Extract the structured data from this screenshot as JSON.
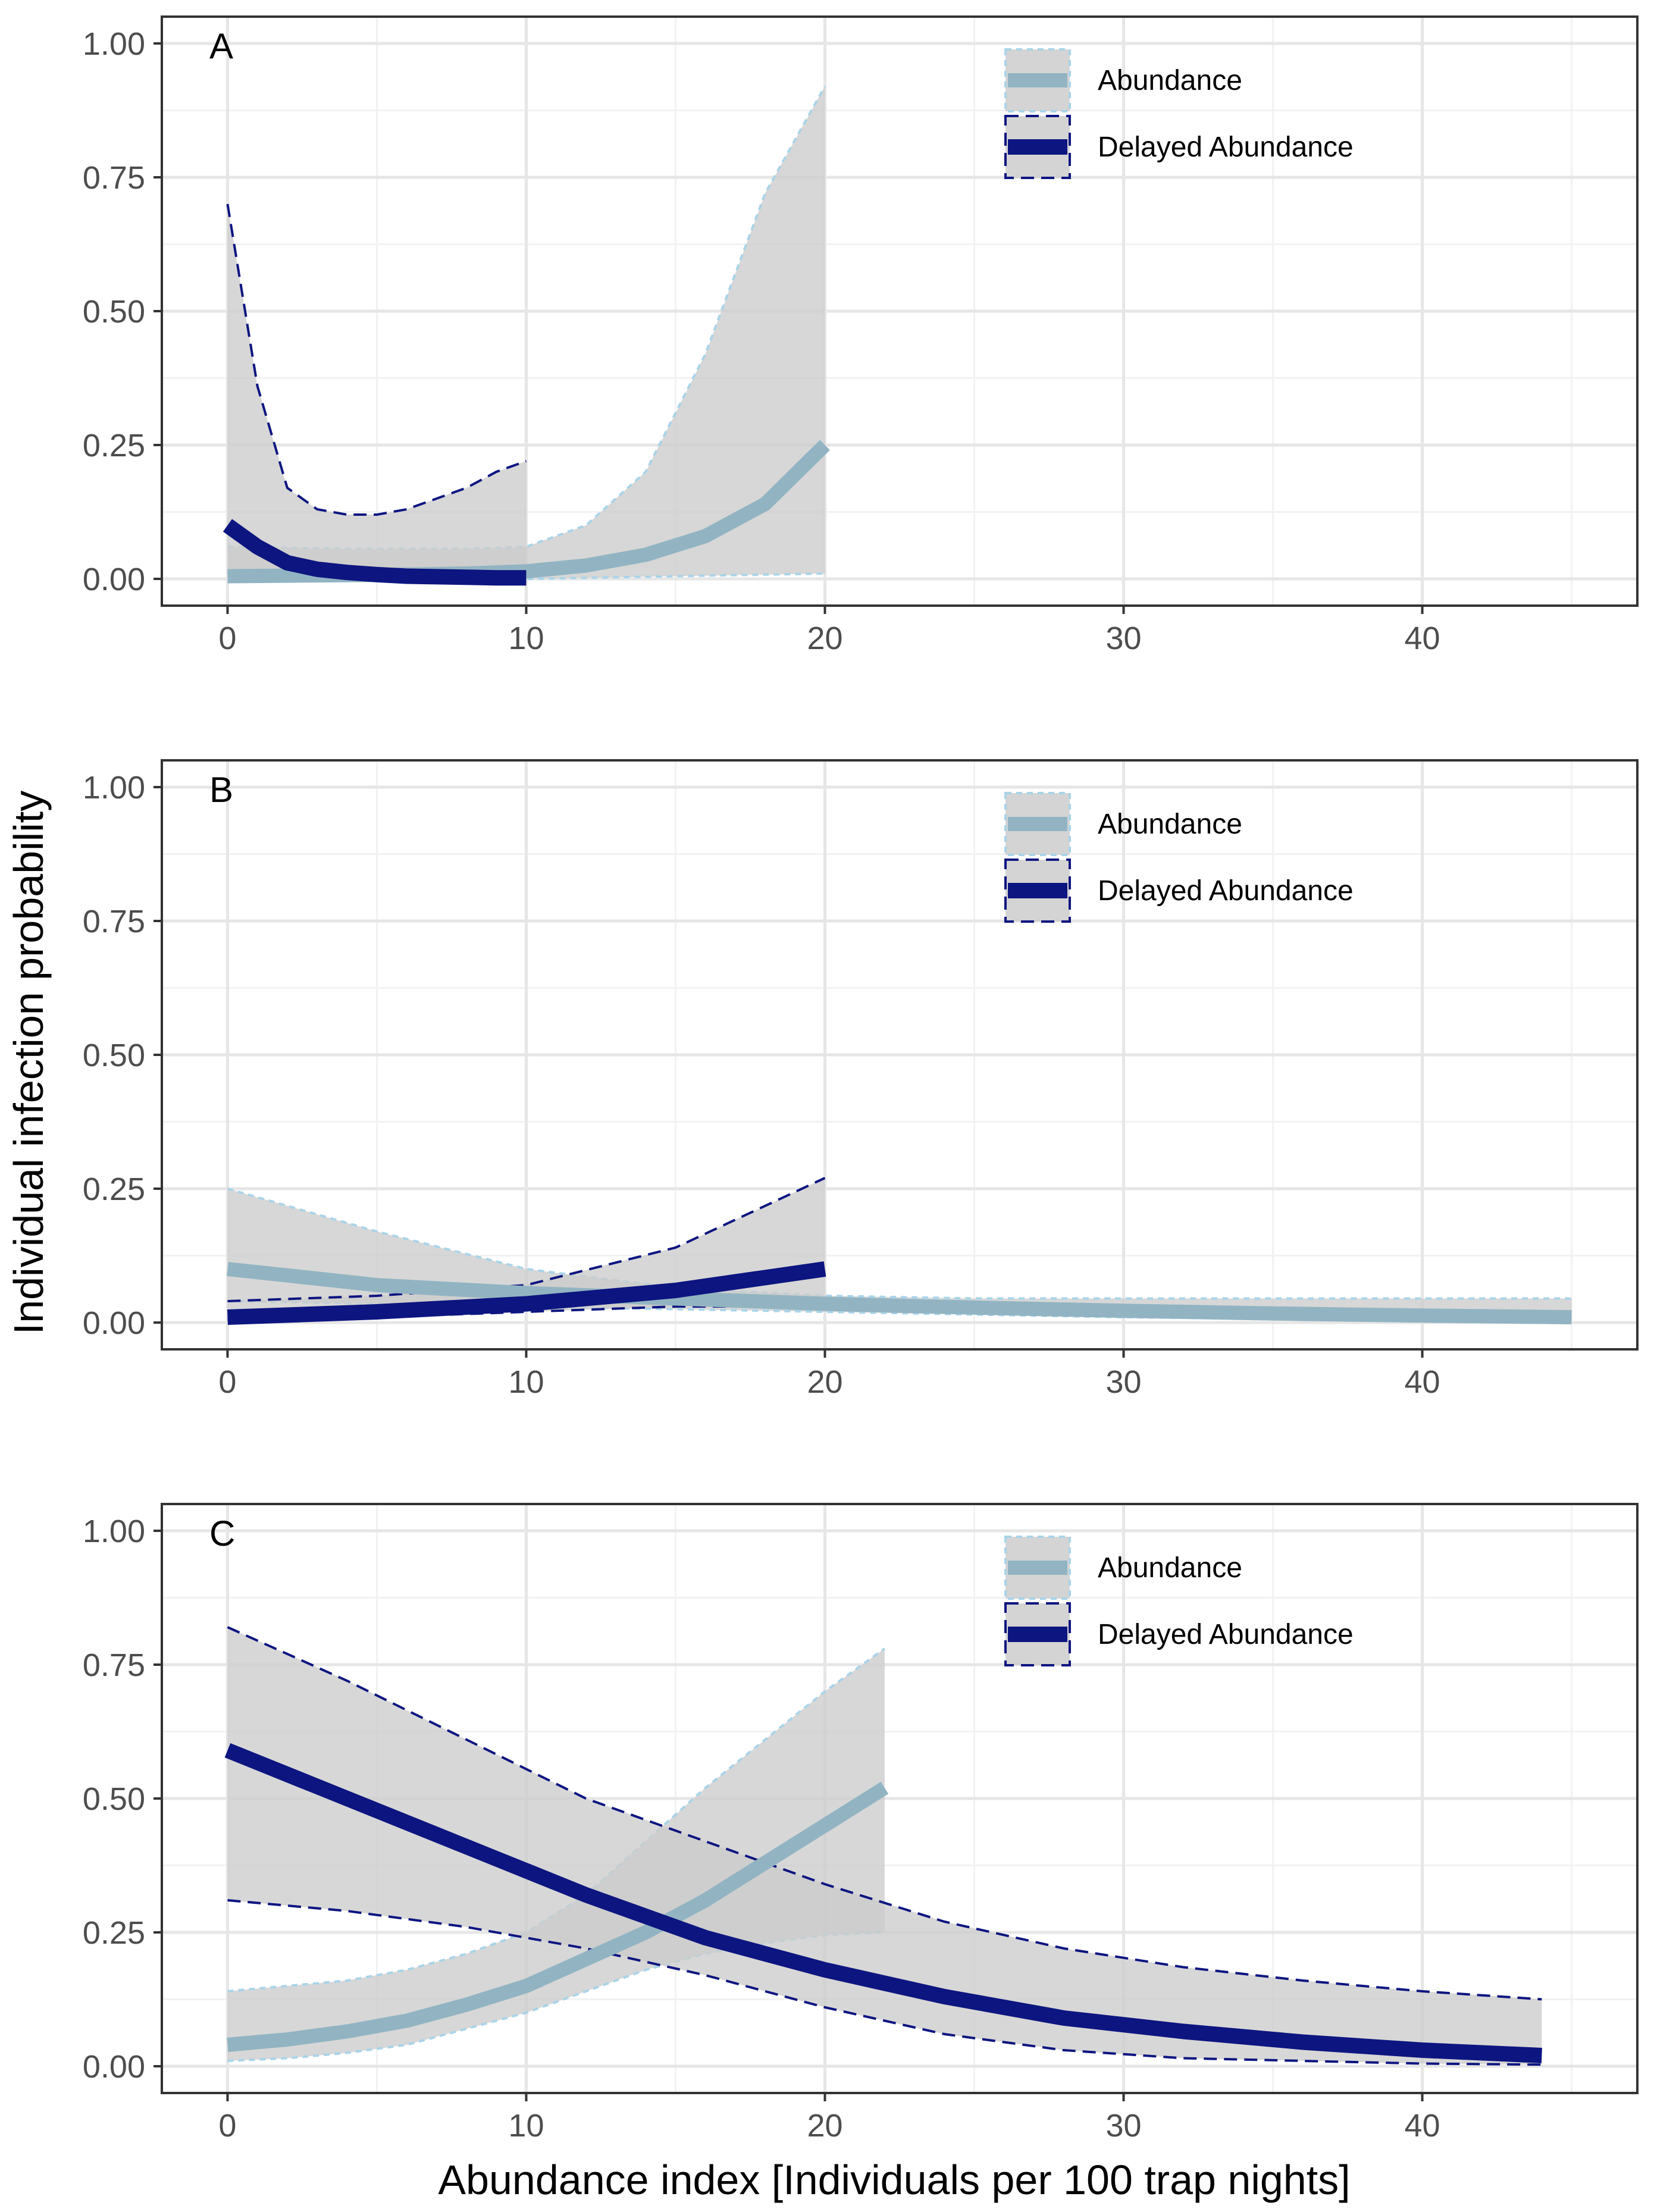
{
  "figure": {
    "ylabel": "Individual infection probability",
    "xlabel": "Abundance index [Individuals per 100 trap nights]"
  },
  "colors": {
    "abundance": "#92b4c2",
    "abundance_edge": "#a9d4e8",
    "delayed": "#0d1580",
    "ribbon": "#cccccc",
    "grid_major": "#e6e6e6",
    "grid_minor": "#f2f2f2",
    "border": "#333333"
  },
  "legend": {
    "abundance": "Abundance",
    "delayed": "Delayed Abundance"
  },
  "chart_data": [
    {
      "type": "line",
      "panel": "A",
      "xlim": [
        -2.2,
        47.2
      ],
      "ylim": [
        -0.05,
        1.05
      ],
      "xticks": [
        0,
        10,
        20,
        30,
        40
      ],
      "yticks": [
        0,
        0.25,
        0.5,
        0.75,
        1
      ],
      "ytick_labels": [
        "0.00",
        "0.25",
        "0.50",
        "0.75",
        "1.00"
      ],
      "series": [
        {
          "name": "Abundance",
          "x": [
            0,
            2,
            4,
            6,
            8,
            10,
            12,
            14,
            16,
            18,
            20
          ],
          "y": [
            0.005,
            0.006,
            0.007,
            0.008,
            0.01,
            0.014,
            0.025,
            0.045,
            0.08,
            0.14,
            0.25
          ],
          "lower": [
            0.0,
            0.0,
            0.0,
            0.0,
            0.0,
            0.0,
            0.002,
            0.004,
            0.006,
            0.008,
            0.01
          ],
          "upper": [
            0.06,
            0.058,
            0.056,
            0.056,
            0.056,
            0.06,
            0.1,
            0.2,
            0.42,
            0.72,
            0.92
          ]
        },
        {
          "name": "Delayed Abundance",
          "x": [
            0,
            1,
            2,
            3,
            4,
            5,
            6,
            7,
            8,
            9,
            10
          ],
          "y": [
            0.1,
            0.06,
            0.03,
            0.018,
            0.012,
            0.008,
            0.005,
            0.004,
            0.003,
            0.002,
            0.002
          ],
          "lower": [
            0.01,
            0.008,
            0.006,
            0.004,
            0.003,
            0.002,
            0.001,
            0.001,
            0.0,
            0.0,
            0.0
          ],
          "upper": [
            0.7,
            0.36,
            0.17,
            0.13,
            0.12,
            0.12,
            0.13,
            0.15,
            0.17,
            0.2,
            0.22
          ]
        }
      ]
    },
    {
      "type": "line",
      "panel": "B",
      "xlim": [
        -2.2,
        47.2
      ],
      "ylim": [
        -0.05,
        1.05
      ],
      "xticks": [
        0,
        10,
        20,
        30,
        40
      ],
      "yticks": [
        0,
        0.25,
        0.5,
        0.75,
        1
      ],
      "ytick_labels": [
        "0.00",
        "0.25",
        "0.50",
        "0.75",
        "1.00"
      ],
      "series": [
        {
          "name": "Abundance",
          "x": [
            0,
            5,
            10,
            15,
            20,
            25,
            30,
            35,
            40,
            45
          ],
          "y": [
            0.1,
            0.07,
            0.055,
            0.045,
            0.035,
            0.028,
            0.022,
            0.017,
            0.013,
            0.01
          ],
          "lower": [
            0.04,
            0.035,
            0.03,
            0.025,
            0.02,
            0.015,
            0.01,
            0.007,
            0.004,
            0.0
          ],
          "upper": [
            0.25,
            0.17,
            0.1,
            0.065,
            0.05,
            0.045,
            0.045,
            0.045,
            0.045,
            0.045
          ]
        },
        {
          "name": "Delayed Abundance",
          "x": [
            0,
            5,
            10,
            15,
            20
          ],
          "y": [
            0.01,
            0.02,
            0.035,
            0.06,
            0.1
          ],
          "lower": [
            0.005,
            0.01,
            0.02,
            0.03,
            0.03
          ],
          "upper": [
            0.04,
            0.05,
            0.07,
            0.14,
            0.27
          ]
        }
      ]
    },
    {
      "type": "line",
      "panel": "C",
      "xlim": [
        -2.2,
        47.2
      ],
      "ylim": [
        -0.05,
        1.05
      ],
      "xticks": [
        0,
        10,
        20,
        30,
        40
      ],
      "yticks": [
        0,
        0.25,
        0.5,
        0.75,
        1
      ],
      "ytick_labels": [
        "0.00",
        "0.25",
        "0.50",
        "0.75",
        "1.00"
      ],
      "series": [
        {
          "name": "Abundance",
          "x": [
            0,
            2,
            4,
            6,
            8,
            10,
            12,
            14,
            16,
            18,
            20,
            22
          ],
          "y": [
            0.04,
            0.05,
            0.065,
            0.085,
            0.115,
            0.15,
            0.2,
            0.25,
            0.31,
            0.38,
            0.45,
            0.52
          ],
          "lower": [
            0.01,
            0.015,
            0.025,
            0.04,
            0.07,
            0.1,
            0.14,
            0.18,
            0.21,
            0.23,
            0.245,
            0.25
          ],
          "upper": [
            0.14,
            0.15,
            0.16,
            0.18,
            0.21,
            0.25,
            0.32,
            0.42,
            0.52,
            0.61,
            0.7,
            0.78
          ]
        },
        {
          "name": "Delayed Abundance",
          "x": [
            0,
            4,
            8,
            12,
            16,
            20,
            24,
            28,
            32,
            36,
            40,
            44
          ],
          "y": [
            0.59,
            0.5,
            0.41,
            0.32,
            0.24,
            0.18,
            0.13,
            0.09,
            0.065,
            0.045,
            0.03,
            0.02
          ],
          "lower": [
            0.31,
            0.29,
            0.26,
            0.22,
            0.17,
            0.11,
            0.06,
            0.03,
            0.015,
            0.01,
            0.005,
            0.003
          ],
          "upper": [
            0.82,
            0.72,
            0.61,
            0.5,
            0.42,
            0.34,
            0.27,
            0.22,
            0.185,
            0.16,
            0.14,
            0.125
          ]
        }
      ]
    }
  ]
}
